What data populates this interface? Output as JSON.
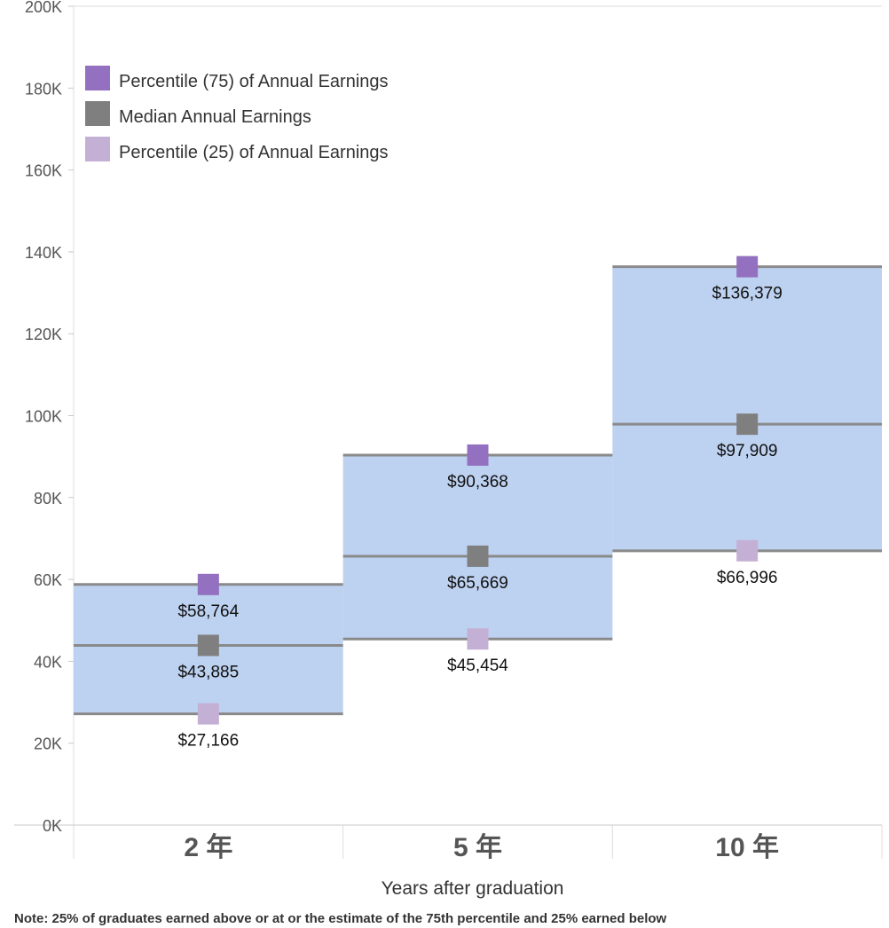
{
  "chart_data": {
    "type": "bar",
    "title": "",
    "xlabel": "Years after graduation",
    "ylabel": "",
    "categories": [
      "2 年",
      "5 年",
      "10 年"
    ],
    "ylim": [
      0,
      200000
    ],
    "yticks": [
      0,
      20000,
      40000,
      60000,
      80000,
      100000,
      120000,
      140000,
      160000,
      180000,
      200000
    ],
    "ytick_labels": [
      "0K",
      "20K",
      "40K",
      "60K",
      "80K",
      "100K",
      "120K",
      "140K",
      "160K",
      "180K",
      "200K"
    ],
    "grid": false,
    "legend_position": "top-left",
    "series": [
      {
        "name": "Percentile (75) of Annual Earnings",
        "values": [
          58764,
          90368,
          136379
        ],
        "labels": [
          "$58,764",
          "$90,368",
          "$136,379"
        ],
        "color": "#9370c0"
      },
      {
        "name": "Median Annual Earnings",
        "values": [
          43885,
          65669,
          97909
        ],
        "labels": [
          "$43,885",
          "$65,669",
          "$97,909"
        ],
        "color": "#7f7f7f"
      },
      {
        "name": "Percentile (25) of Annual Earnings",
        "values": [
          27166,
          45454,
          66996
        ],
        "labels": [
          "$27,166",
          "$45,454",
          "$66,996"
        ],
        "color": "#c5b0d5"
      }
    ],
    "band_color": "#bdd1f0",
    "line_color": "#8a8a8a"
  },
  "note": "Note: 25% of graduates earned above or at or the estimate of the 75th percentile and 25% earned below"
}
